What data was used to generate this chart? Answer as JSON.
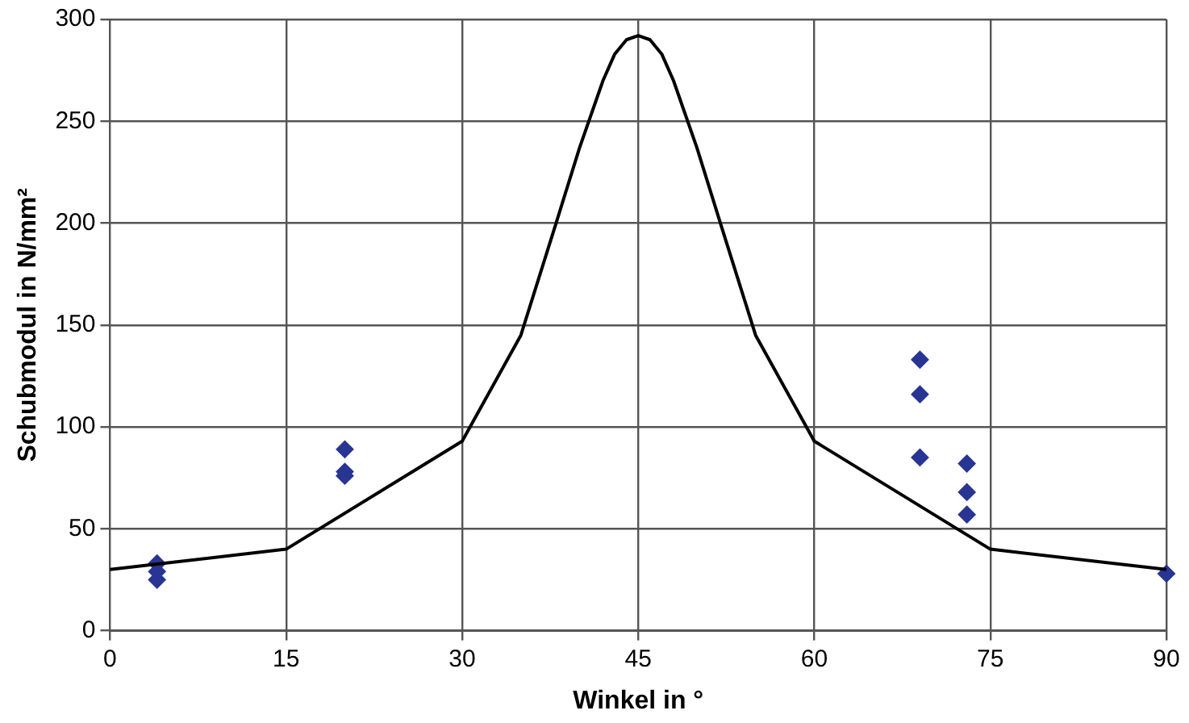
{
  "chart_data": {
    "type": "line",
    "xlabel": "Winkel in °",
    "ylabel": "Schubmodul in N/mm²",
    "xlim": [
      0,
      90
    ],
    "xticks": [
      0,
      15,
      30,
      45,
      60,
      75,
      90
    ],
    "ylim": [
      0,
      300
    ],
    "yticks": [
      0,
      50,
      100,
      150,
      200,
      250,
      300
    ],
    "grid": true,
    "legend": false,
    "series": [
      {
        "color": "#000000",
        "marker": "none",
        "x": [
          0,
          15,
          30,
          35,
          38,
          40,
          42,
          43,
          44,
          45,
          46,
          47,
          48,
          50,
          52,
          55,
          60,
          75,
          90
        ],
        "values": [
          30,
          40,
          93,
          145,
          200,
          237,
          270,
          283,
          290,
          292,
          290,
          283,
          270,
          237,
          200,
          145,
          93,
          40,
          30
        ]
      },
      {
        "type": "scatter",
        "color": "#283593",
        "marker": "diamond",
        "x": [
          4,
          4,
          4,
          20,
          20,
          20,
          69,
          69,
          69,
          73,
          73,
          73,
          90
        ],
        "values": [
          33,
          29,
          25,
          89,
          78,
          76,
          133,
          116,
          85,
          82,
          68,
          57,
          28
        ]
      }
    ]
  }
}
